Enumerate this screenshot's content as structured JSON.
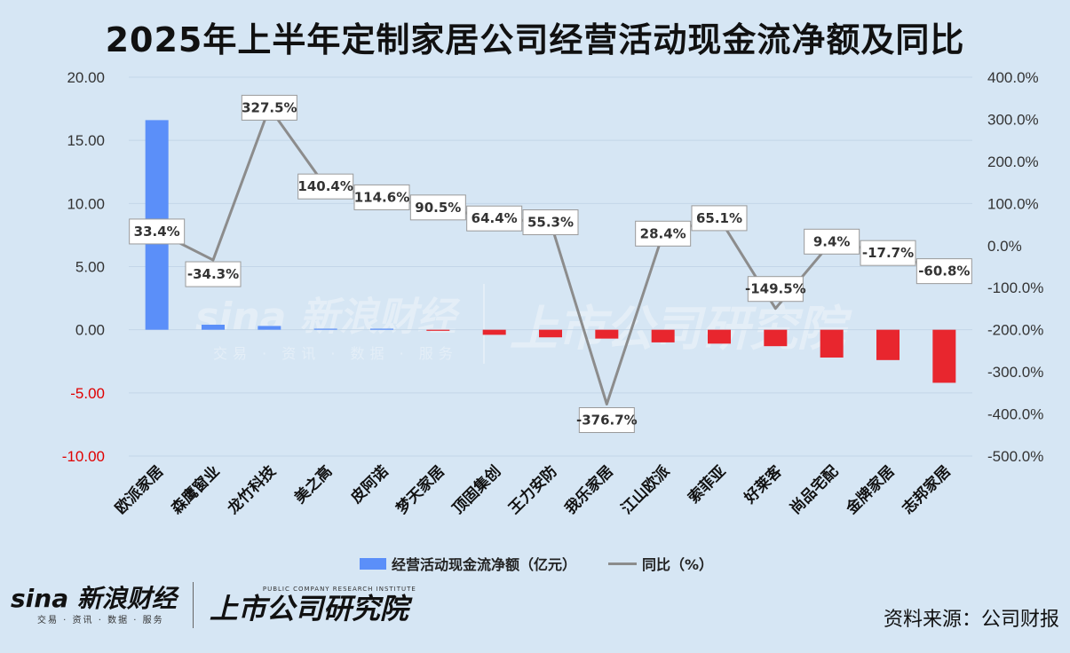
{
  "title": "2025年上半年定制家居公司经营活动现金流净额及同比",
  "source": "资料来源：公司财报",
  "watermark": {
    "brand": "sina 新浪财经",
    "sub": "交易 · 资讯 · 数据 · 服务",
    "research": "上市公司研究院"
  },
  "footer": {
    "brand": "sina 新浪财经",
    "sub": "交易 · 资讯 · 数据 · 服务",
    "research_en": "PUBLIC COMPANY RESEARCH INSTITUTE",
    "research": "上市公司研究院"
  },
  "colors": {
    "positive_bar": "#5b8ff9",
    "negative_bar": "#e8262e",
    "line": "#8c8c8c",
    "background": "#d6e6f4"
  },
  "chart_data": {
    "type": "bar+line",
    "title": "2025年上半年定制家居公司经营活动现金流净额及同比",
    "categories": [
      "欧派家居",
      "森鹰窗业",
      "龙竹科技",
      "美之高",
      "皮阿诺",
      "梦天家居",
      "顶固集创",
      "王力安防",
      "我乐家居",
      "江山欧派",
      "索菲亚",
      "好莱客",
      "尚品宅配",
      "金牌家居",
      "志邦家居"
    ],
    "series": [
      {
        "name": "经营活动现金流净额（亿元）",
        "type": "bar",
        "axis": "left",
        "values": [
          16.6,
          0.4,
          0.3,
          0.05,
          0.05,
          -0.05,
          -0.4,
          -0.6,
          -0.7,
          -1.0,
          -1.1,
          -1.3,
          -2.2,
          -2.4,
          -4.2
        ]
      },
      {
        "name": "同比（%）",
        "type": "line",
        "axis": "right",
        "values": [
          33.4,
          -34.3,
          327.5,
          140.4,
          114.6,
          90.5,
          64.4,
          55.3,
          -376.7,
          28.4,
          65.1,
          -149.5,
          9.4,
          -17.7,
          -60.8
        ],
        "labels": [
          "33.4%",
          "-34.3%",
          "327.5%",
          "140.4%",
          "114.6%",
          "90.5%",
          "64.4%",
          "55.3%",
          "-376.7%",
          "28.4%",
          "65.1%",
          "-149.5%",
          "9.4%",
          "-17.7%",
          "-60.8%"
        ]
      }
    ],
    "y_left": {
      "range": [
        -10,
        20
      ],
      "ticks": [
        "20.00",
        "15.00",
        "10.00",
        "5.00",
        "0.00",
        "-5.00",
        "-10.00"
      ],
      "tick_values": [
        20,
        15,
        10,
        5,
        0,
        -5,
        -10
      ]
    },
    "y_right": {
      "range": [
        -500,
        400
      ],
      "ticks": [
        "400.0%",
        "300.0%",
        "200.0%",
        "100.0%",
        "0.0%",
        "-100.0%",
        "-200.0%",
        "-300.0%",
        "-400.0%",
        "-500.0%"
      ],
      "tick_values": [
        400,
        300,
        200,
        100,
        0,
        -100,
        -200,
        -300,
        -400,
        -500
      ]
    },
    "grid": true,
    "legend": "bottom"
  }
}
